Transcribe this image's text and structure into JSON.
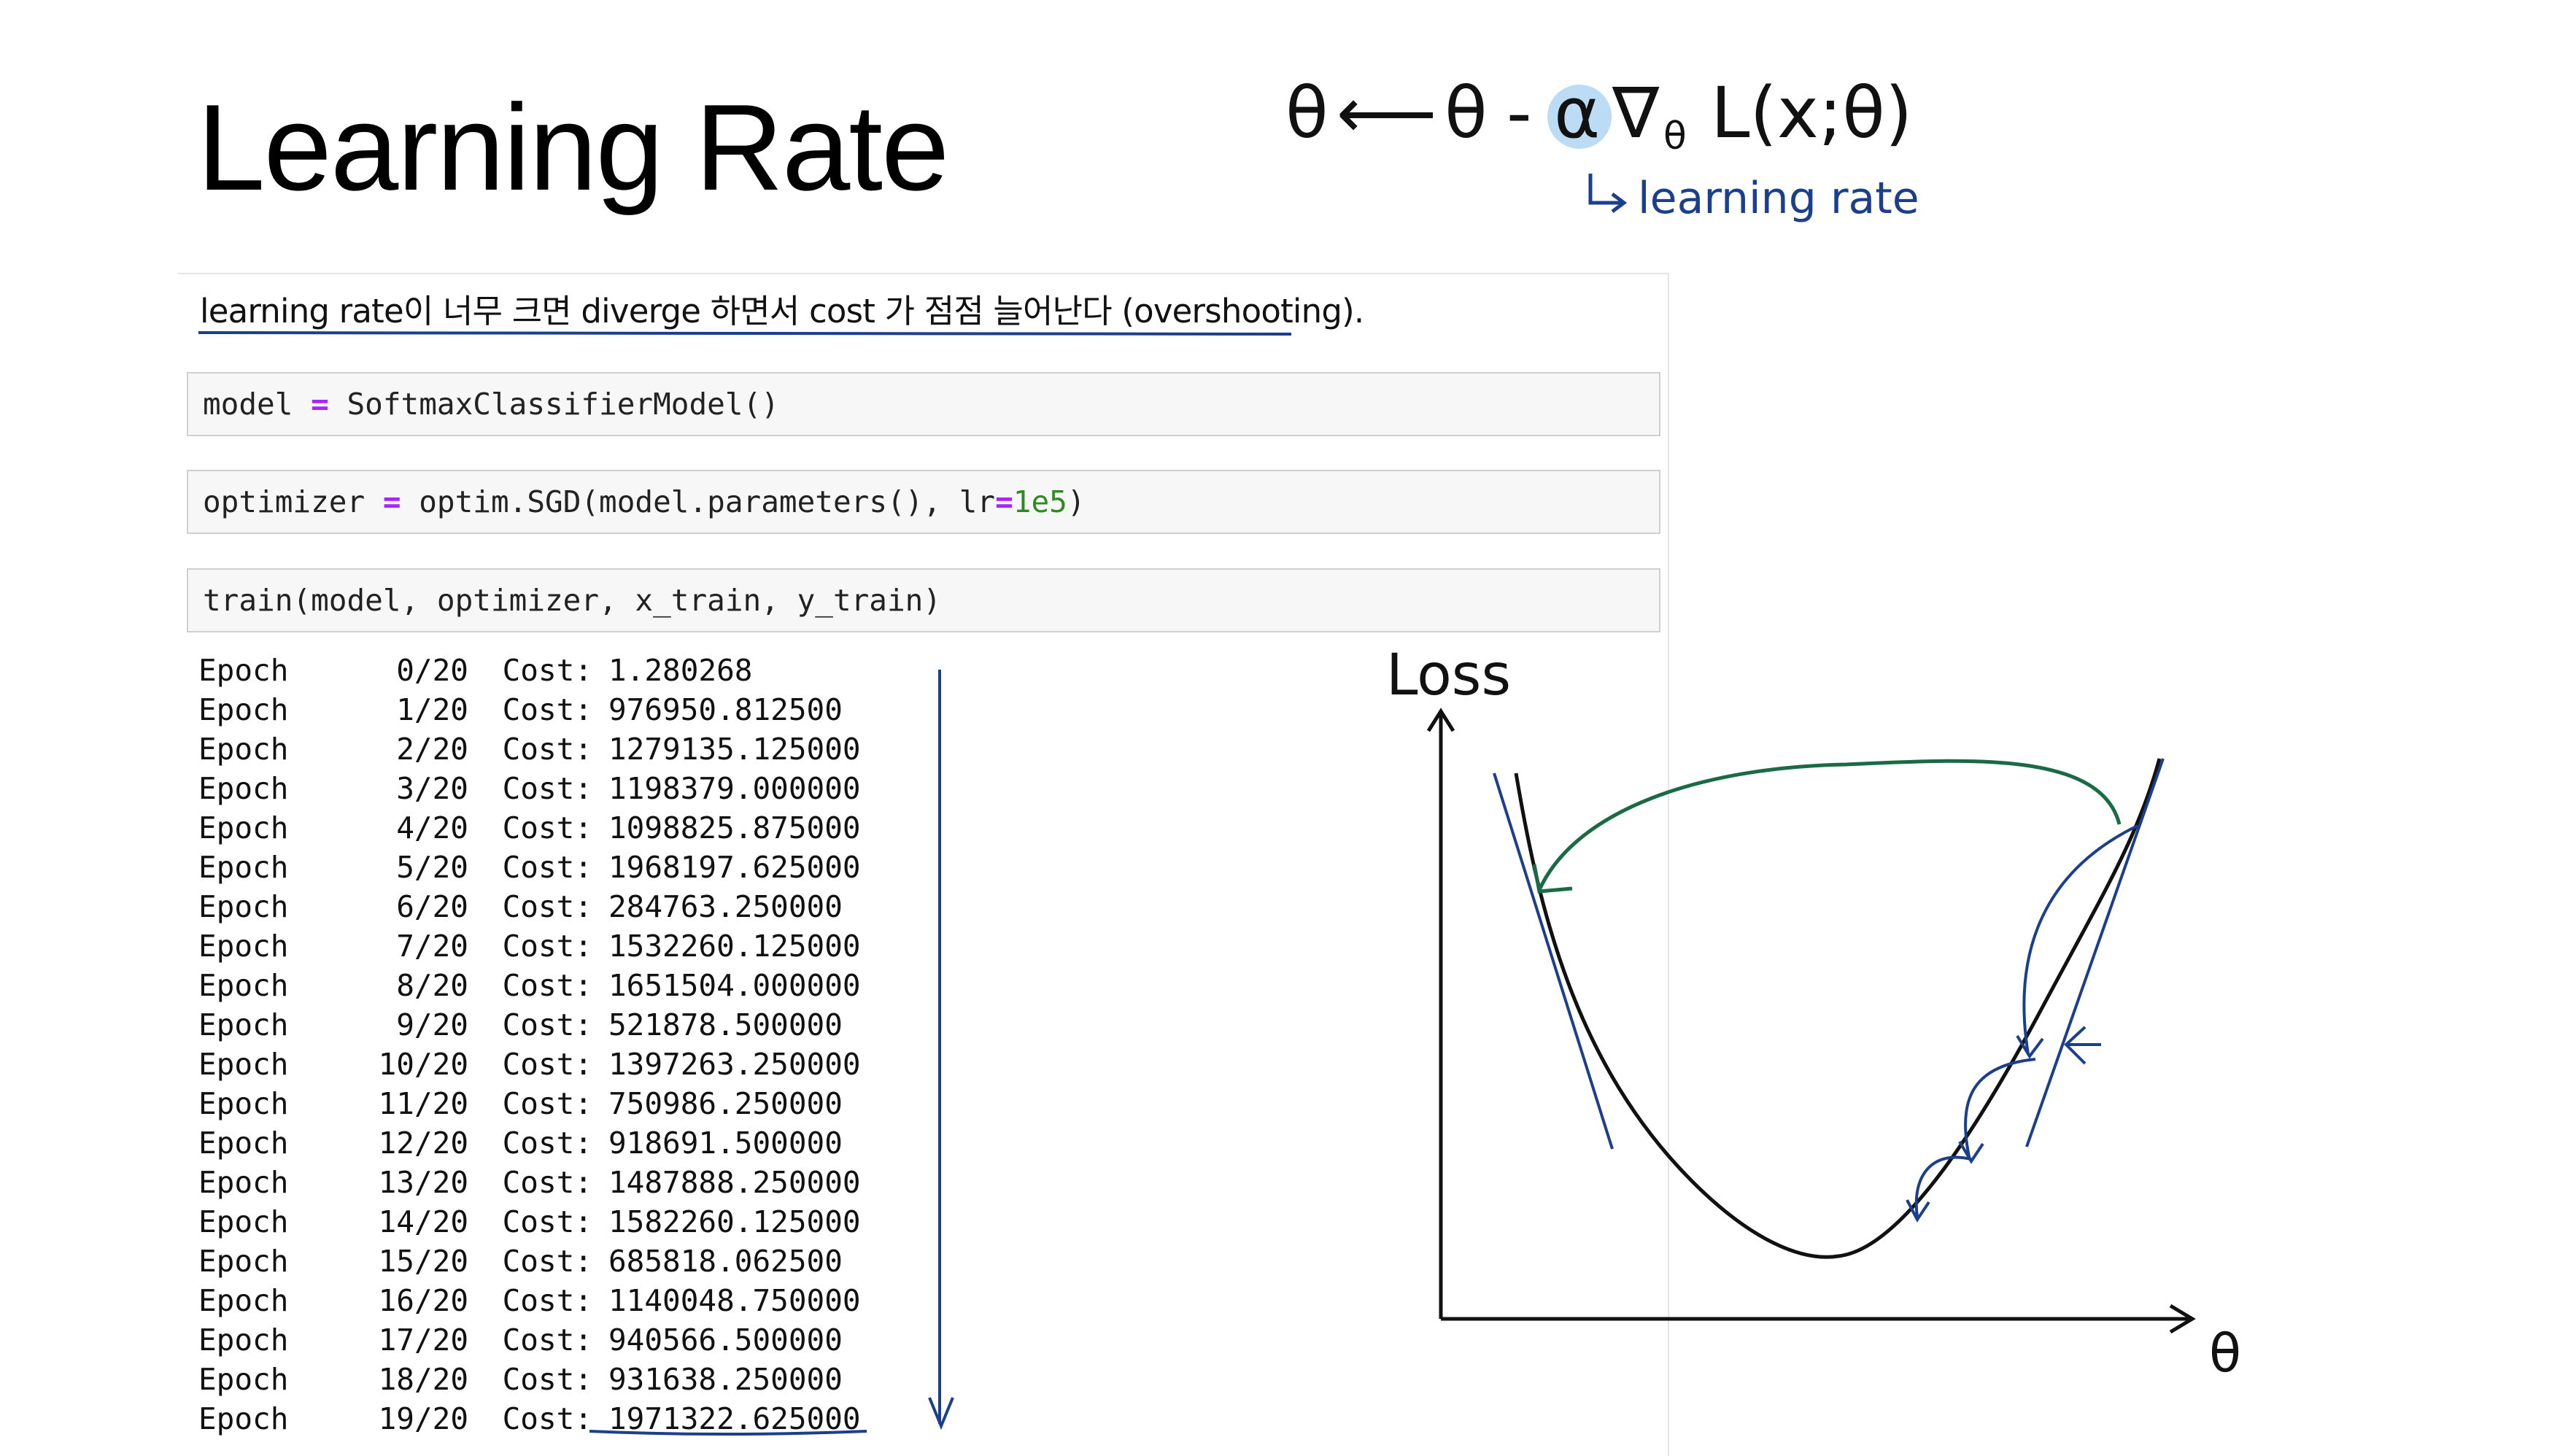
{
  "slide": {
    "title": "Learning Rate"
  },
  "formula": {
    "theta": "θ",
    "arrow": "⟵",
    "minus": "-",
    "alpha": "α",
    "grad": "∇",
    "subscript": "θ",
    "loss_expr": "L(x;θ)",
    "annotation": "learning rate"
  },
  "notebook": {
    "markdown": "learning rate이 너무 크면 diverge 하면서 cost 가 점점 늘어난다 (overshooting).",
    "cells": [
      {
        "prefix": "model ",
        "op": "=",
        "suffix": " SoftmaxClassifierModel()"
      },
      {
        "prefix": "optimizer ",
        "op": "=",
        "suffix": " optim.SGD(model.parameters(), lr",
        "op2": "=",
        "num": "1e5",
        "end": ")"
      },
      {
        "prefix": "train(model, optimizer, x_train, y_train)"
      }
    ],
    "output_rows": [
      {
        "label": "Epoch",
        "epoch": "0/20",
        "cost_label": "Cost:",
        "cost": "1.280268"
      },
      {
        "label": "Epoch",
        "epoch": "1/20",
        "cost_label": "Cost:",
        "cost": "976950.812500"
      },
      {
        "label": "Epoch",
        "epoch": "2/20",
        "cost_label": "Cost:",
        "cost": "1279135.125000"
      },
      {
        "label": "Epoch",
        "epoch": "3/20",
        "cost_label": "Cost:",
        "cost": "1198379.000000"
      },
      {
        "label": "Epoch",
        "epoch": "4/20",
        "cost_label": "Cost:",
        "cost": "1098825.875000"
      },
      {
        "label": "Epoch",
        "epoch": "5/20",
        "cost_label": "Cost:",
        "cost": "1968197.625000"
      },
      {
        "label": "Epoch",
        "epoch": "6/20",
        "cost_label": "Cost:",
        "cost": "284763.250000"
      },
      {
        "label": "Epoch",
        "epoch": "7/20",
        "cost_label": "Cost:",
        "cost": "1532260.125000"
      },
      {
        "label": "Epoch",
        "epoch": "8/20",
        "cost_label": "Cost:",
        "cost": "1651504.000000"
      },
      {
        "label": "Epoch",
        "epoch": "9/20",
        "cost_label": "Cost:",
        "cost": "521878.500000"
      },
      {
        "label": "Epoch",
        "epoch": "10/20",
        "cost_label": "Cost:",
        "cost": "1397263.250000"
      },
      {
        "label": "Epoch",
        "epoch": "11/20",
        "cost_label": "Cost:",
        "cost": "750986.250000"
      },
      {
        "label": "Epoch",
        "epoch": "12/20",
        "cost_label": "Cost:",
        "cost": "918691.500000"
      },
      {
        "label": "Epoch",
        "epoch": "13/20",
        "cost_label": "Cost:",
        "cost": "1487888.250000"
      },
      {
        "label": "Epoch",
        "epoch": "14/20",
        "cost_label": "Cost:",
        "cost": "1582260.125000"
      },
      {
        "label": "Epoch",
        "epoch": "15/20",
        "cost_label": "Cost:",
        "cost": "685818.062500"
      },
      {
        "label": "Epoch",
        "epoch": "16/20",
        "cost_label": "Cost:",
        "cost": "1140048.750000"
      },
      {
        "label": "Epoch",
        "epoch": "17/20",
        "cost_label": "Cost:",
        "cost": "940566.500000"
      },
      {
        "label": "Epoch",
        "epoch": "18/20",
        "cost_label": "Cost:",
        "cost": "931638.250000"
      },
      {
        "label": "Epoch",
        "epoch": "19/20",
        "cost_label": "Cost:",
        "cost": "1971322.625000"
      }
    ]
  },
  "sketch": {
    "y_label": "Loss",
    "x_label": "θ"
  },
  "colors": {
    "ink_blue": "#1b3f8b",
    "ink_green": "#1a6b45",
    "ink_black": "#111111",
    "highlight": "#bcdcf5",
    "code_op": "#aa22ff",
    "code_num": "#2e8b22"
  }
}
